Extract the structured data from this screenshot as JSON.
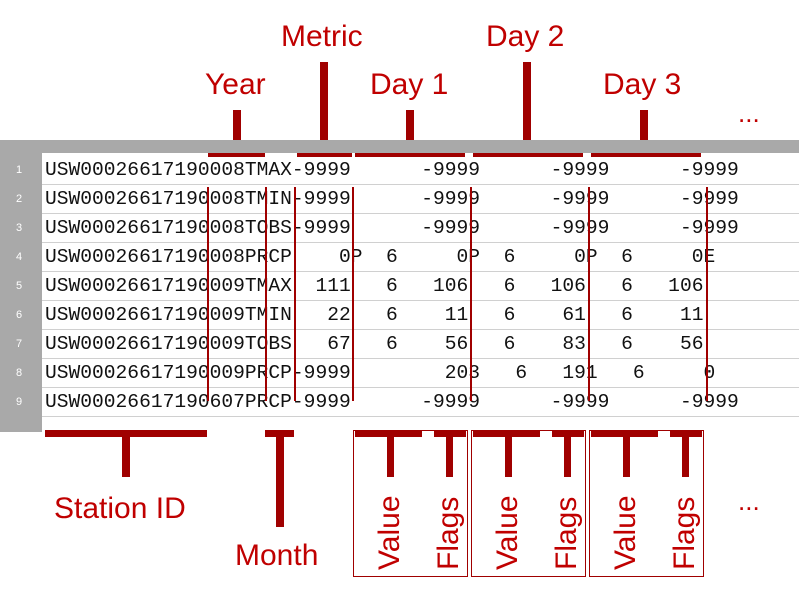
{
  "labels": {
    "metric": "Metric",
    "day2": "Day 2",
    "year": "Year",
    "day1": "Day 1",
    "day3": "Day 3",
    "ellipsis_top": "...",
    "station_id": "Station ID",
    "month": "Month",
    "value": "Value",
    "flags": "Flags",
    "ellipsis_bottom": "..."
  },
  "rows": [
    {
      "num": "1",
      "text": "USW00026617190008TMAX-9999      -9999      -9999      -9999"
    },
    {
      "num": "2",
      "text": "USW00026617190008TMIN-9999      -9999      -9999      -9999"
    },
    {
      "num": "3",
      "text": "USW00026617190008TOBS-9999      -9999      -9999      -9999"
    },
    {
      "num": "4",
      "text": "USW00026617190008PRCP    0P  6     0P  6     0P  6     0E"
    },
    {
      "num": "5",
      "text": "USW00026617190009TMAX  111   6   106   6   106   6   106"
    },
    {
      "num": "6",
      "text": "USW00026617190009TMIN   22   6    11   6    61   6    11"
    },
    {
      "num": "7",
      "text": "USW00026617190009TOBS   67   6    56   6    83   6    56"
    },
    {
      "num": "8",
      "text": "USW00026617190009PRCP-9999        203   6   191   6     0"
    },
    {
      "num": "9",
      "text": "USW00026617190607PRCP-9999      -9999      -9999      -9999"
    }
  ],
  "colors": {
    "accent": "#c00000",
    "bar": "#a00000",
    "gutter": "#a9a9a9"
  }
}
